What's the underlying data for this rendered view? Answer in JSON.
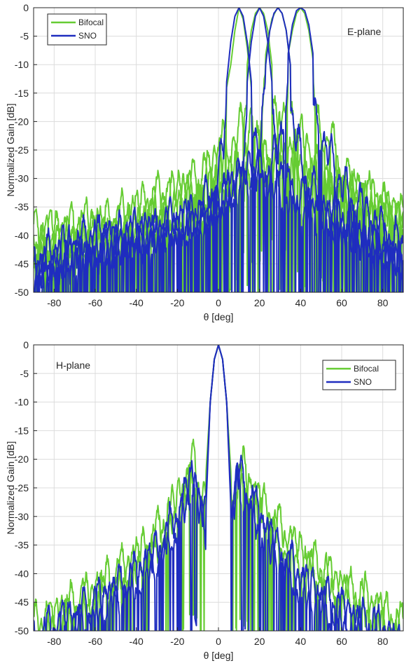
{
  "chart_data": [
    {
      "type": "line",
      "annotation": "E-plane",
      "xlabel": "θ [deg]",
      "ylabel": "Normalized Gain [dB]",
      "xlim": [
        -90,
        90
      ],
      "ylim": [
        -50,
        0
      ],
      "xticks": [
        -80,
        -60,
        -40,
        -20,
        0,
        20,
        40,
        60,
        80
      ],
      "yticks": [
        0,
        -5,
        -10,
        -15,
        -20,
        -25,
        -30,
        -35,
        -40,
        -45,
        -50
      ],
      "grid": true,
      "legend_position": "top-left",
      "series": [
        {
          "name": "Bifocal",
          "color": "#66cc33",
          "beams": [
            {
              "peak": 10,
              "x": [
                -90,
                -70,
                -50,
                -40,
                -30,
                -20,
                -10,
                -5,
                0,
                2,
                4,
                6,
                8,
                10,
                12,
                14,
                16,
                18,
                20,
                25,
                30,
                40,
                50,
                60,
                70,
                80,
                90
              ],
              "y": [
                -34,
                -33,
                -32,
                -30,
                -28,
                -27,
                -25,
                -24,
                -20,
                -17,
                -14,
                -10,
                -4,
                0,
                -2,
                -7,
                -14,
                -22,
                -24,
                -20,
                -18,
                -24,
                -26,
                -28,
                -30,
                -31,
                -32
              ]
            },
            {
              "peak": 20,
              "x": [
                -90,
                -70,
                -50,
                -30,
                -20,
                -10,
                0,
                5,
                10,
                14,
                16,
                18,
                20,
                22,
                24,
                26,
                28,
                30,
                35,
                40,
                50,
                60,
                70,
                80,
                90
              ],
              "y": [
                -36,
                -35,
                -34,
                -30,
                -28,
                -26,
                -22,
                -20,
                -17,
                -10,
                -4,
                -1,
                0,
                -1,
                -4,
                -10,
                -16,
                -20,
                -22,
                -24,
                -26,
                -28,
                -30,
                -31,
                -33
              ]
            },
            {
              "peak": 29,
              "x": [
                -90,
                -70,
                -50,
                -30,
                -10,
                0,
                10,
                15,
                20,
                24,
                26,
                28,
                29,
                31,
                33,
                35,
                38,
                42,
                50,
                60,
                70,
                80,
                90
              ],
              "y": [
                -38,
                -36,
                -35,
                -33,
                -30,
                -27,
                -22,
                -18,
                -15,
                -6,
                -2,
                -0.5,
                0,
                -1,
                -4,
                -10,
                -16,
                -19,
                -22,
                -26,
                -28,
                -30,
                -32
              ]
            },
            {
              "peak": 40,
              "x": [
                -90,
                -70,
                -50,
                -30,
                -10,
                0,
                10,
                20,
                30,
                34,
                36,
                38,
                40,
                42,
                44,
                46,
                48,
                50,
                55,
                60,
                70,
                80,
                90
              ],
              "y": [
                -40,
                -38,
                -36,
                -34,
                -32,
                -30,
                -27,
                -24,
                -20,
                -8,
                -4,
                -1,
                0,
                -1,
                -4,
                -9,
                -14,
                -18,
                -18,
                -24,
                -27,
                -30,
                -32
              ]
            }
          ]
        },
        {
          "name": "SNO",
          "color": "#1f2dbf",
          "beams": [
            {
              "peak": 10,
              "x": [
                -90,
                -70,
                -50,
                -30,
                -15,
                -5,
                0,
                2,
                4,
                6,
                8,
                10,
                12,
                14,
                16,
                18,
                22,
                30,
                40,
                50,
                60,
                70,
                80,
                90
              ],
              "y": [
                -40,
                -36,
                -35,
                -34,
                -32,
                -28,
                -24,
                -20,
                -13,
                -6,
                -1.5,
                0,
                -1.5,
                -6,
                -13,
                -20,
                -26,
                -28,
                -30,
                -33,
                -35,
                -37,
                -38,
                -40
              ]
            },
            {
              "peak": 20,
              "x": [
                -90,
                -70,
                -50,
                -30,
                -10,
                0,
                8,
                12,
                14,
                16,
                18,
                20,
                22,
                24,
                26,
                28,
                32,
                40,
                50,
                60,
                70,
                80,
                90
              ],
              "y": [
                -42,
                -38,
                -36,
                -35,
                -33,
                -30,
                -26,
                -20,
                -13,
                -6,
                -1.5,
                0,
                -1.5,
                -6,
                -13,
                -20,
                -26,
                -28,
                -31,
                -34,
                -36,
                -38,
                -40
              ]
            },
            {
              "peak": 29,
              "x": [
                -90,
                -70,
                -50,
                -30,
                -10,
                0,
                10,
                18,
                21,
                23,
                25,
                27,
                29,
                31,
                33,
                35,
                37,
                42,
                50,
                60,
                70,
                80,
                90
              ],
              "y": [
                -42,
                -39,
                -37,
                -36,
                -34,
                -30,
                -26,
                -22,
                -17,
                -10,
                -4,
                -1,
                0,
                -1,
                -4,
                -10,
                -17,
                -24,
                -29,
                -32,
                -35,
                -37,
                -40
              ]
            },
            {
              "peak": 40,
              "x": [
                -90,
                -70,
                -50,
                -30,
                -10,
                0,
                10,
                20,
                28,
                32,
                34,
                36,
                38,
                40,
                42,
                44,
                46,
                48,
                52,
                55,
                60,
                70,
                80,
                90
              ],
              "y": [
                -43,
                -40,
                -38,
                -36,
                -33,
                -30,
                -26,
                -24,
                -21,
                -14,
                -8,
                -3,
                -0.5,
                0,
                -0.5,
                -3,
                -8,
                -14,
                -21,
                -20,
                -26,
                -30,
                -34,
                -37
              ]
            }
          ]
        }
      ]
    },
    {
      "type": "line",
      "annotation": "H-plane",
      "xlabel": "θ [deg]",
      "ylabel": "Normalized Gain [dB]",
      "xlim": [
        -90,
        90
      ],
      "ylim": [
        -50,
        0
      ],
      "xticks": [
        -80,
        -60,
        -40,
        -20,
        0,
        20,
        40,
        60,
        80
      ],
      "yticks": [
        0,
        -5,
        -10,
        -15,
        -20,
        -25,
        -30,
        -35,
        -40,
        -45,
        -50
      ],
      "grid": true,
      "legend_position": "top-right",
      "series": [
        {
          "name": "Bifocal",
          "color": "#66cc33",
          "beams": [
            {
              "peak": 0,
              "x": [
                -90,
                -80,
                -60,
                -40,
                -30,
                -20,
                -15,
                -12,
                -9,
                -6,
                -4,
                -2,
                0,
                2,
                4,
                6,
                9,
                12,
                15,
                20,
                30,
                40,
                60,
                80,
                90
              ],
              "y": [
                -44,
                -42,
                -38,
                -32,
                -28,
                -22,
                -18,
                -15.5,
                -20,
                -22,
                -10,
                -2.5,
                0,
                -2.5,
                -10,
                -22,
                -19,
                -17,
                -19,
                -22,
                -27,
                -31,
                -37,
                -41,
                -44
              ]
            },
            {
              "peak": 0,
              "x": [
                -90,
                -80,
                -60,
                -40,
                -30,
                -20,
                -15,
                -12,
                -9,
                -6,
                -4,
                -2,
                0,
                2,
                4,
                6,
                9,
                12,
                15,
                20,
                30,
                40,
                60,
                80,
                90
              ],
              "y": [
                -46,
                -43,
                -39,
                -34,
                -30,
                -24,
                -20,
                -17,
                -21,
                -24,
                -10,
                -2.5,
                0,
                -2.5,
                -10,
                -24,
                -21,
                -19,
                -21,
                -24,
                -29,
                -33,
                -38,
                -43,
                -46
              ]
            }
          ]
        },
        {
          "name": "SNO",
          "color": "#1f2dbf",
          "beams": [
            {
              "peak": 0,
              "x": [
                -90,
                -80,
                -60,
                -40,
                -30,
                -20,
                -15,
                -12,
                -9,
                -6,
                -4,
                -2,
                0,
                2,
                4,
                6,
                9,
                12,
                15,
                20,
                30,
                40,
                60,
                80,
                90
              ],
              "y": [
                -47,
                -44,
                -40,
                -35,
                -31,
                -25,
                -20,
                -17,
                -22,
                -26,
                -10,
                -2.5,
                0,
                -2.5,
                -10,
                -26,
                -17,
                -19,
                -21,
                -25,
                -31,
                -36,
                -41,
                -45,
                -48
              ]
            },
            {
              "peak": 0,
              "x": [
                -90,
                -80,
                -60,
                -40,
                -30,
                -20,
                -15,
                -12,
                -9,
                -6,
                -4,
                -2,
                0,
                2,
                4,
                6,
                9,
                12,
                15,
                20,
                30,
                40,
                60,
                80,
                90
              ],
              "y": [
                -48,
                -46,
                -42,
                -37,
                -33,
                -27,
                -22,
                -19,
                -24,
                -28,
                -10,
                -2.5,
                0,
                -2.5,
                -10,
                -28,
                -19,
                -21,
                -23,
                -27,
                -33,
                -38,
                -43,
                -46,
                -49
              ]
            }
          ]
        }
      ]
    }
  ]
}
